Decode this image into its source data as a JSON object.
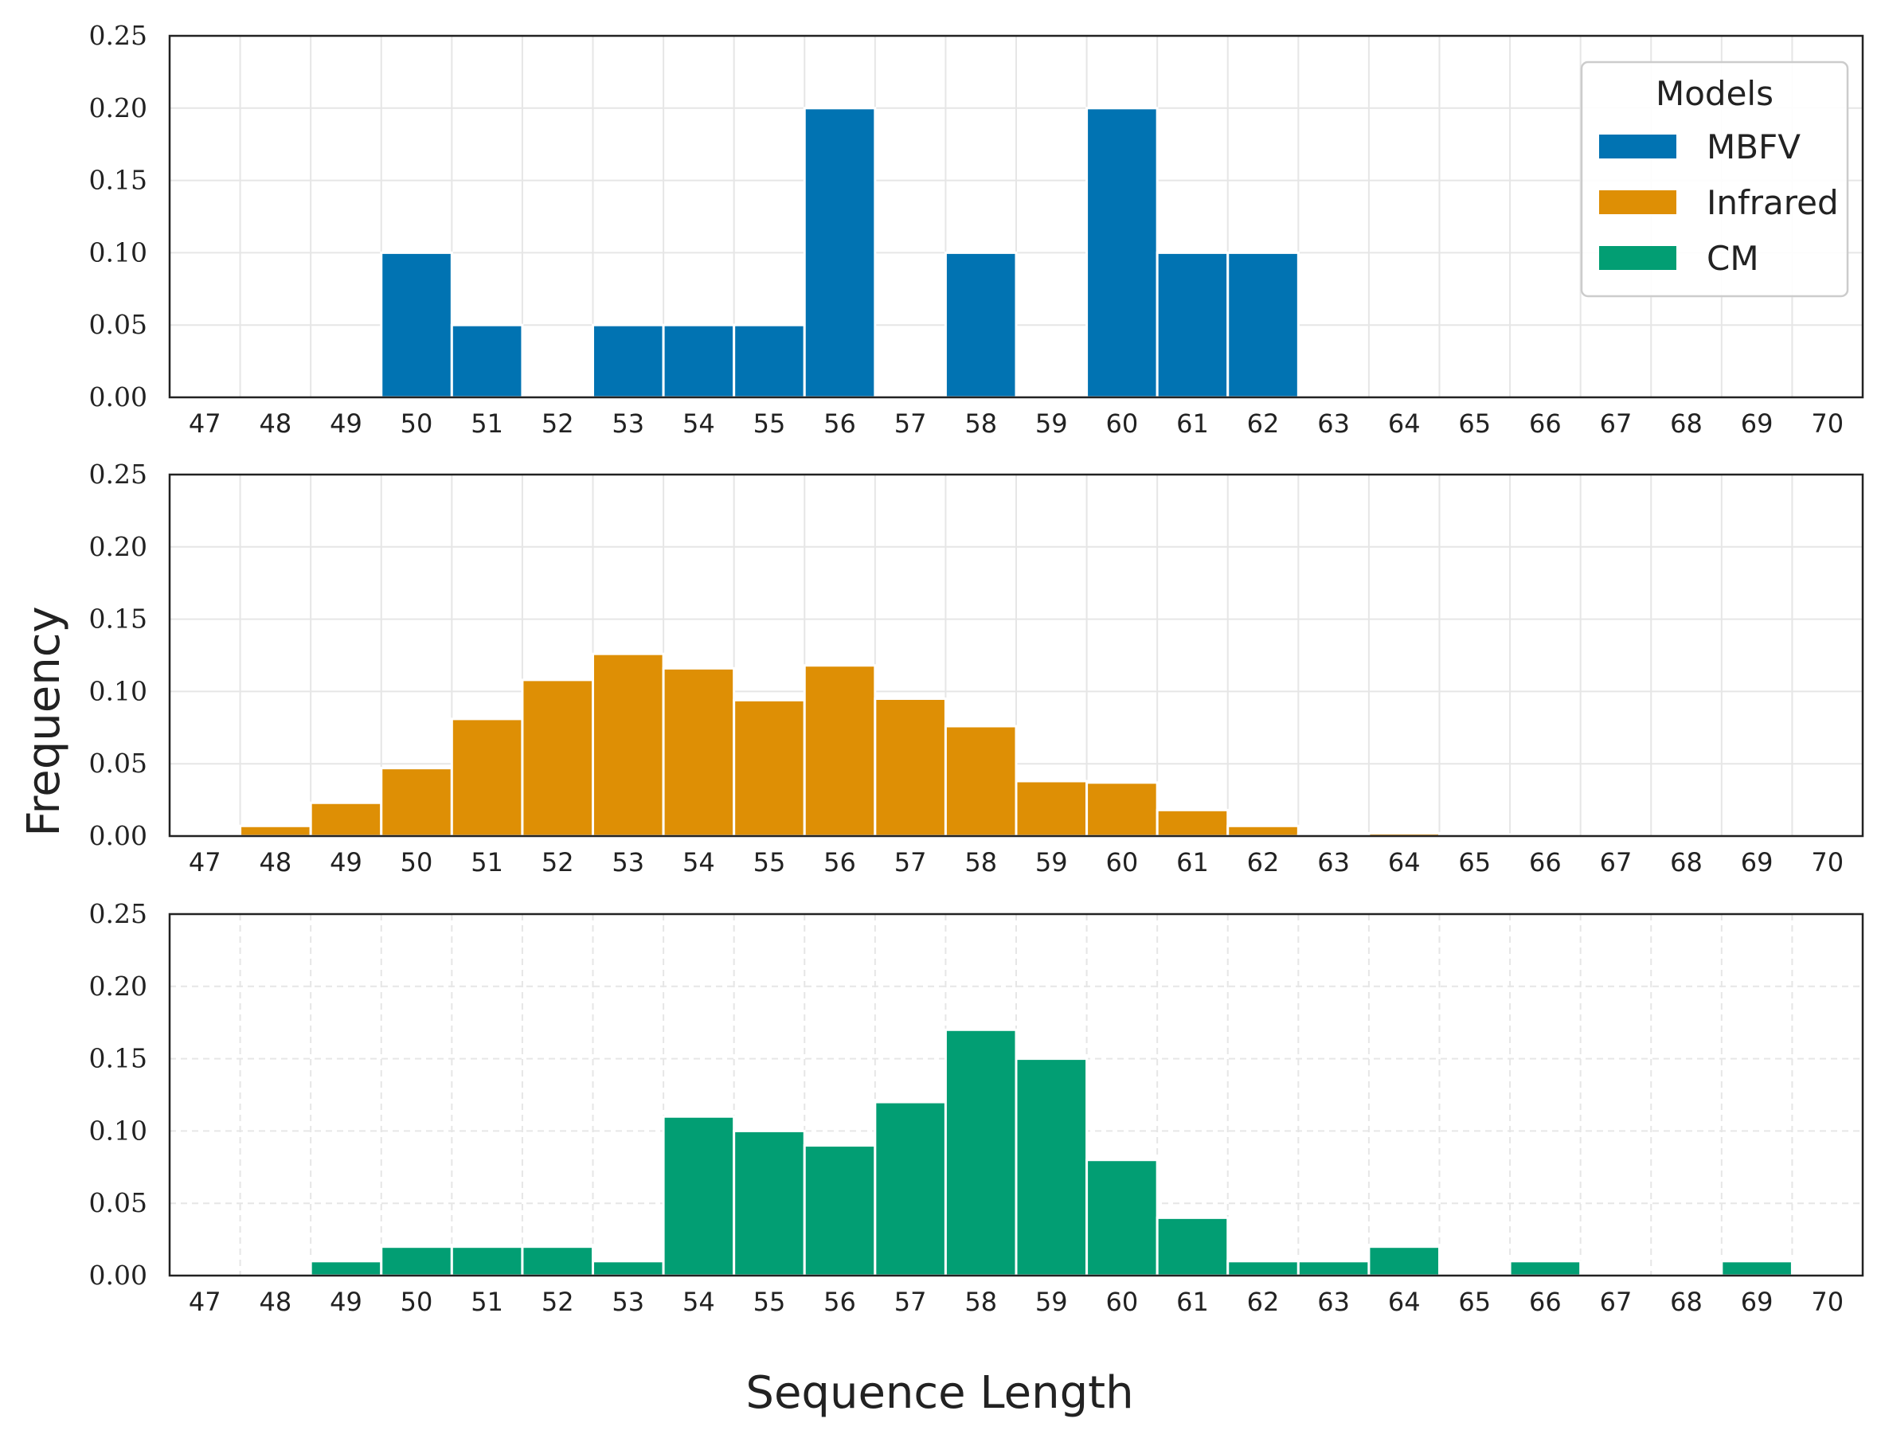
{
  "chart_data": [
    {
      "type": "bar",
      "panel": "top",
      "series_name": "MBFV",
      "color": "#0173b2",
      "categories": [
        47,
        48,
        49,
        50,
        51,
        52,
        53,
        54,
        55,
        56,
        57,
        58,
        59,
        60,
        61,
        62,
        63,
        64,
        65,
        66,
        67,
        68,
        69,
        70
      ],
      "values": [
        0,
        0,
        0,
        0.1,
        0.05,
        0,
        0.05,
        0.05,
        0.05,
        0.2,
        0,
        0.1,
        0,
        0.2,
        0.1,
        0.1,
        0,
        0,
        0,
        0,
        0,
        0,
        0,
        0
      ],
      "ylim": [
        0,
        0.25
      ],
      "yticks": [
        "0.00",
        "0.05",
        "0.10",
        "0.15",
        "0.20",
        "0.25"
      ],
      "grid": "solid"
    },
    {
      "type": "bar",
      "panel": "middle",
      "series_name": "Infrared",
      "color": "#de8f05",
      "categories": [
        47,
        48,
        49,
        50,
        51,
        52,
        53,
        54,
        55,
        56,
        57,
        58,
        59,
        60,
        61,
        62,
        63,
        64,
        65,
        66,
        67,
        68,
        69,
        70
      ],
      "values": [
        0,
        0.007,
        0.023,
        0.047,
        0.081,
        0.108,
        0.126,
        0.116,
        0.094,
        0.118,
        0.095,
        0.076,
        0.038,
        0.037,
        0.018,
        0.007,
        0.001,
        0.002,
        0.001,
        0,
        0,
        0,
        0,
        0
      ],
      "ylim": [
        0,
        0.25
      ],
      "yticks": [
        "0.00",
        "0.05",
        "0.10",
        "0.15",
        "0.20",
        "0.25"
      ],
      "grid": "solid"
    },
    {
      "type": "bar",
      "panel": "bottom",
      "series_name": "CM",
      "color": "#029e73",
      "categories": [
        47,
        48,
        49,
        50,
        51,
        52,
        53,
        54,
        55,
        56,
        57,
        58,
        59,
        60,
        61,
        62,
        63,
        64,
        65,
        66,
        67,
        68,
        69,
        70
      ],
      "values": [
        0,
        0,
        0.01,
        0.02,
        0.02,
        0.02,
        0.01,
        0.11,
        0.1,
        0.09,
        0.12,
        0.17,
        0.15,
        0.08,
        0.04,
        0.01,
        0.01,
        0.02,
        0,
        0.01,
        0,
        0,
        0.01,
        0
      ],
      "ylim": [
        0,
        0.25
      ],
      "yticks": [
        "0.00",
        "0.05",
        "0.10",
        "0.15",
        "0.20",
        "0.25"
      ],
      "grid": "dashed"
    }
  ],
  "xlabel": "Sequence Length",
  "ylabel": "Frequency",
  "legend": {
    "title": "Models",
    "placement": "top-right",
    "items": [
      {
        "label": "MBFV",
        "color": "#0173b2"
      },
      {
        "label": "Infrared",
        "color": "#de8f05"
      },
      {
        "label": "CM",
        "color": "#029e73"
      }
    ]
  }
}
